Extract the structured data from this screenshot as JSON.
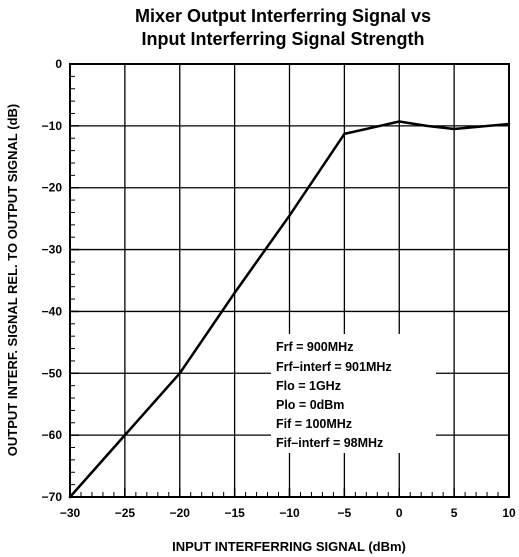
{
  "chart_data": {
    "type": "line",
    "title": [
      "Mixer Output Interferring Signal vs",
      "Input Interferring Signal Strength"
    ],
    "xlabel": "INPUT INTERFERRING SIGNAL (dBm)",
    "ylabel": "OUTPUT INTERF. SIGNAL REL. TO OUTPUT SIGNAL (dB)",
    "xlim": [
      -30,
      10
    ],
    "ylim": [
      -70,
      0
    ],
    "x_ticks": [
      -30,
      -25,
      -20,
      -15,
      -10,
      -5,
      0,
      5,
      10
    ],
    "x_tick_labels": [
      "−30",
      "−25",
      "−20",
      "−15",
      "−10",
      "−5",
      "0",
      "5",
      "10"
    ],
    "y_ticks": [
      0,
      -10,
      -20,
      -30,
      -40,
      -50,
      -60,
      -70
    ],
    "y_tick_labels": [
      "0",
      "−10",
      "−20",
      "−30",
      "−40",
      "−50",
      "−60",
      "−70"
    ],
    "x_minor_step": 1,
    "y_minor_step": 2,
    "grid": true,
    "line_color": "#000000",
    "series": [
      {
        "x": [
          -30,
          -25,
          -20,
          -15,
          -10,
          -5,
          0,
          2.5,
          5,
          10
        ],
        "y": [
          -70,
          -60,
          -50,
          -37,
          -24.5,
          -11.3,
          -9.3,
          -10,
          -10.5,
          -9.7
        ]
      }
    ],
    "annotations": [
      "Frf = 900MHz",
      "Frf–interf = 901MHz",
      "Flo = 1GHz",
      "Plo = 0dBm",
      "Fif = 100MHz",
      "Fif–interf = 98MHz"
    ]
  }
}
